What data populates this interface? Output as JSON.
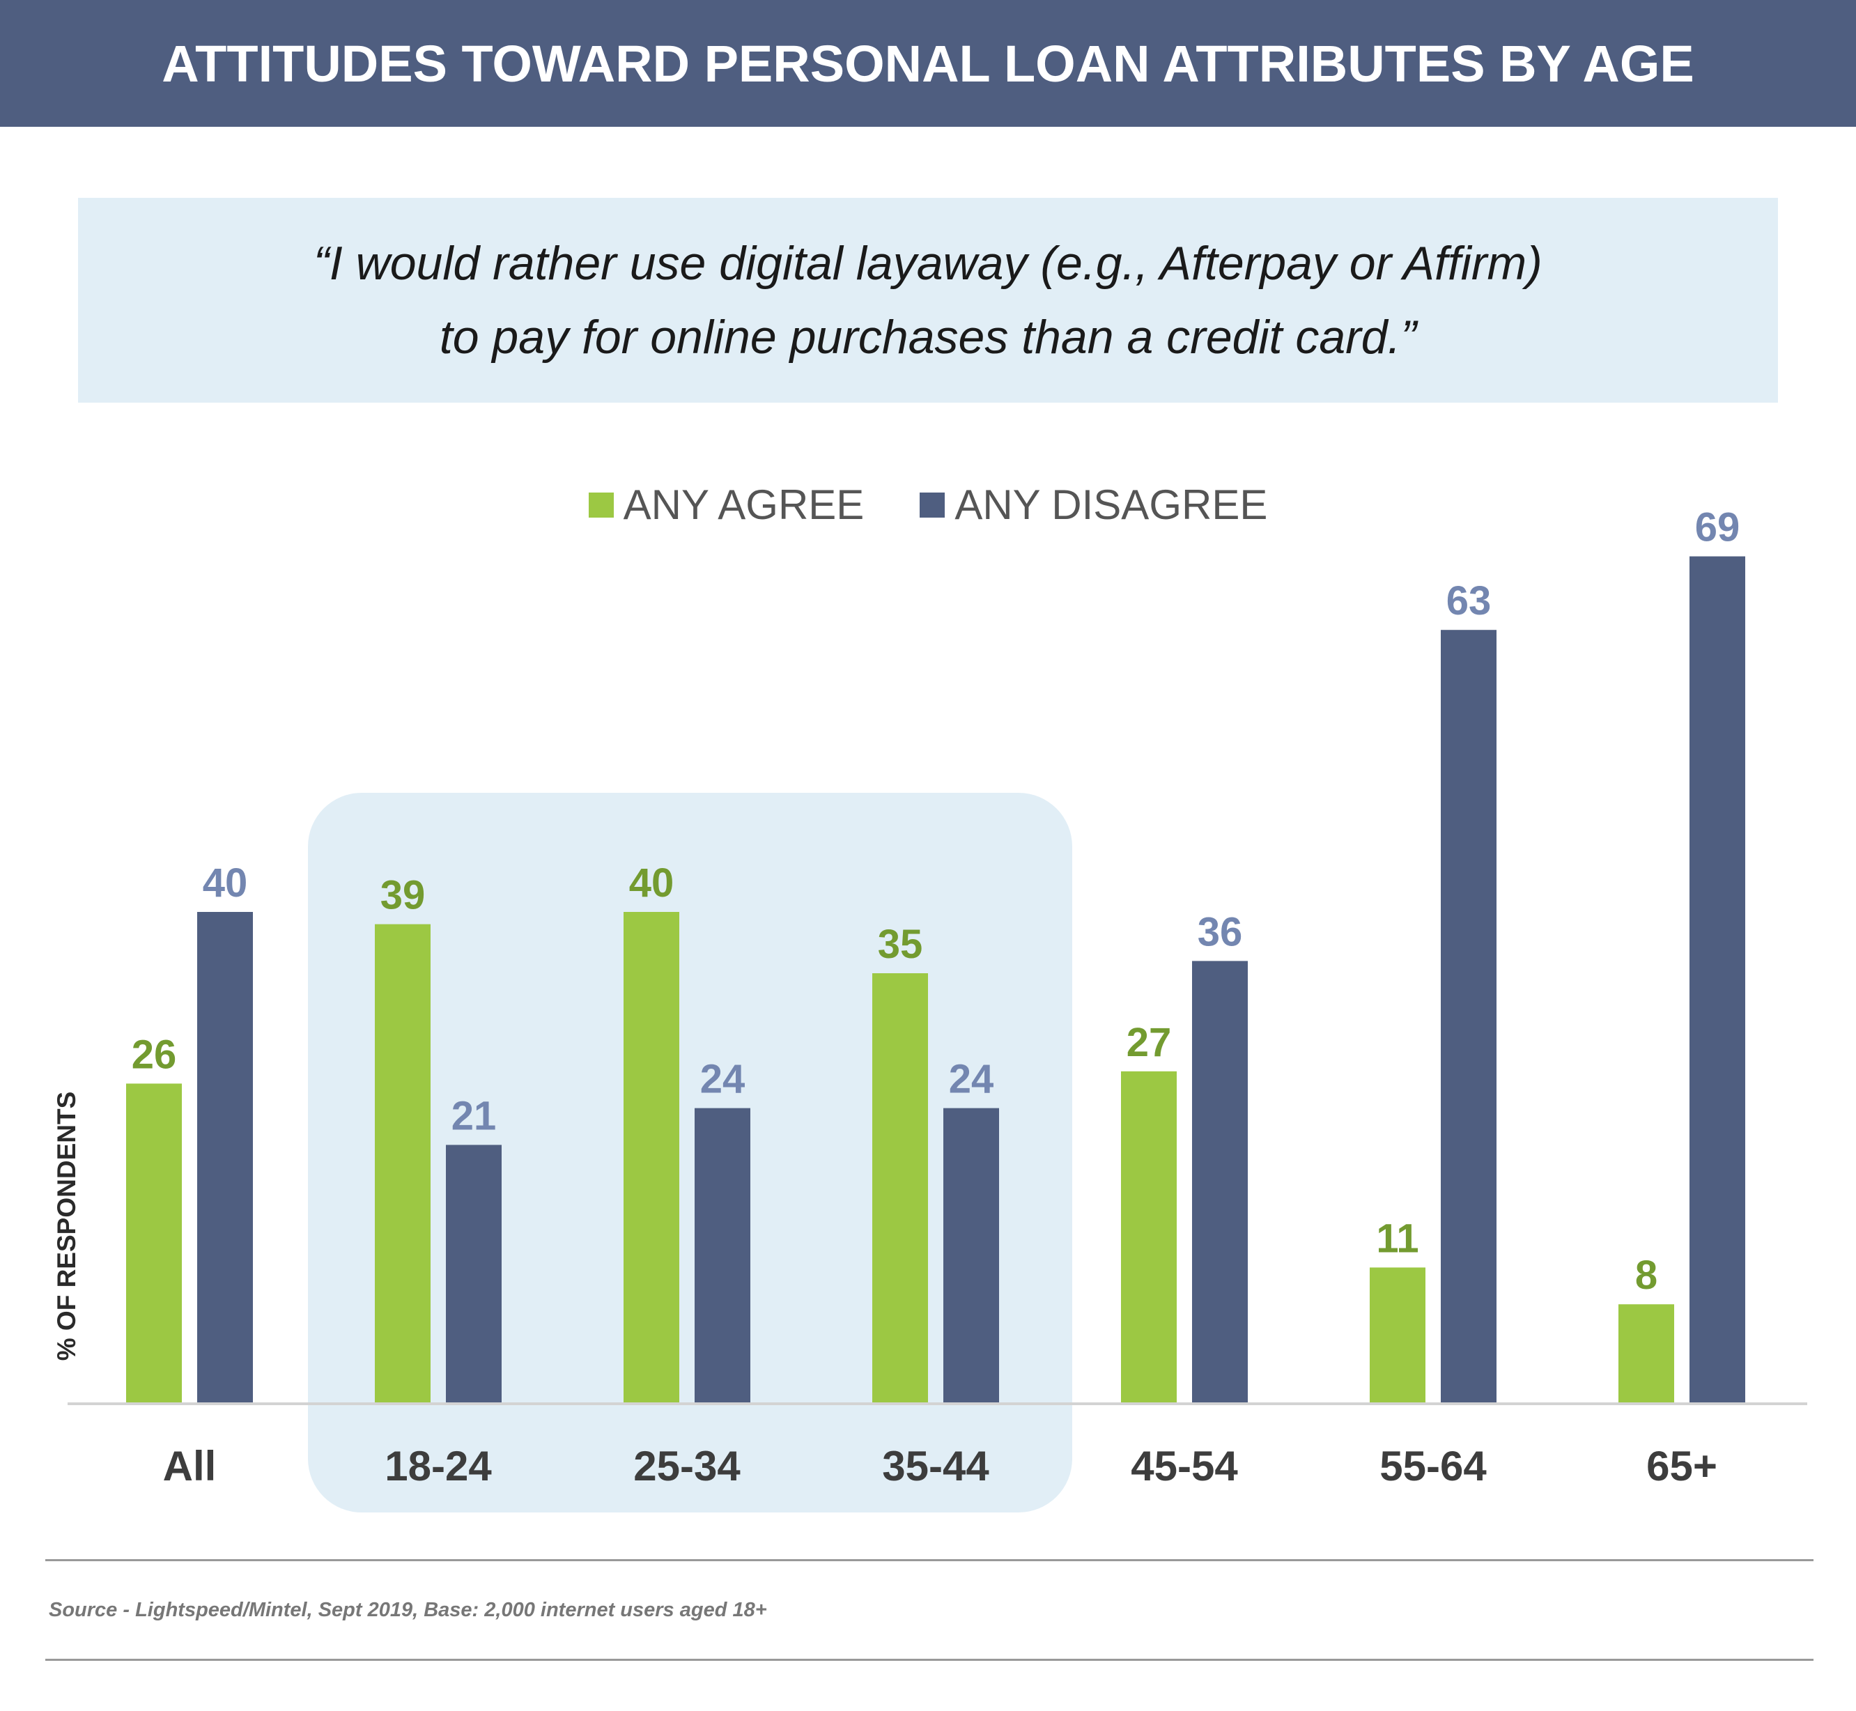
{
  "header": {
    "title": "ATTITUDES TOWARD PERSONAL LOAN ATTRIBUTES BY AGE"
  },
  "quote": {
    "line1": "“I would rather use digital layaway (e.g., Afterpay or Affirm)",
    "line2": "to pay for online purchases than a credit card.”"
  },
  "footer": {
    "source": "Source - Lightspeed/Mintel, Sept 2019, Base: 2,000 internet users aged 18+"
  },
  "colors": {
    "agree": "#9cc843",
    "disagree": "#4f5e80",
    "agree_label": "#739b30",
    "disagree_label": "#7386b0",
    "highlight": "#e1eef6"
  },
  "chart_data": {
    "type": "bar",
    "title": "",
    "xlabel": "",
    "ylabel": "% OF RESPONDENTS",
    "categories": [
      "All",
      "18-24",
      "25-34",
      "35-44",
      "45-54",
      "55-64",
      "65+"
    ],
    "series": [
      {
        "name": "ANY AGREE",
        "values": [
          26,
          39,
          40,
          35,
          27,
          11,
          8
        ]
      },
      {
        "name": "ANY DISAGREE",
        "values": [
          40,
          21,
          24,
          24,
          36,
          63,
          69
        ]
      }
    ],
    "ylim": [
      0,
      69
    ],
    "grid": false,
    "legend": "top-center",
    "highlighted_categories": [
      "18-24",
      "25-34",
      "35-44"
    ]
  }
}
